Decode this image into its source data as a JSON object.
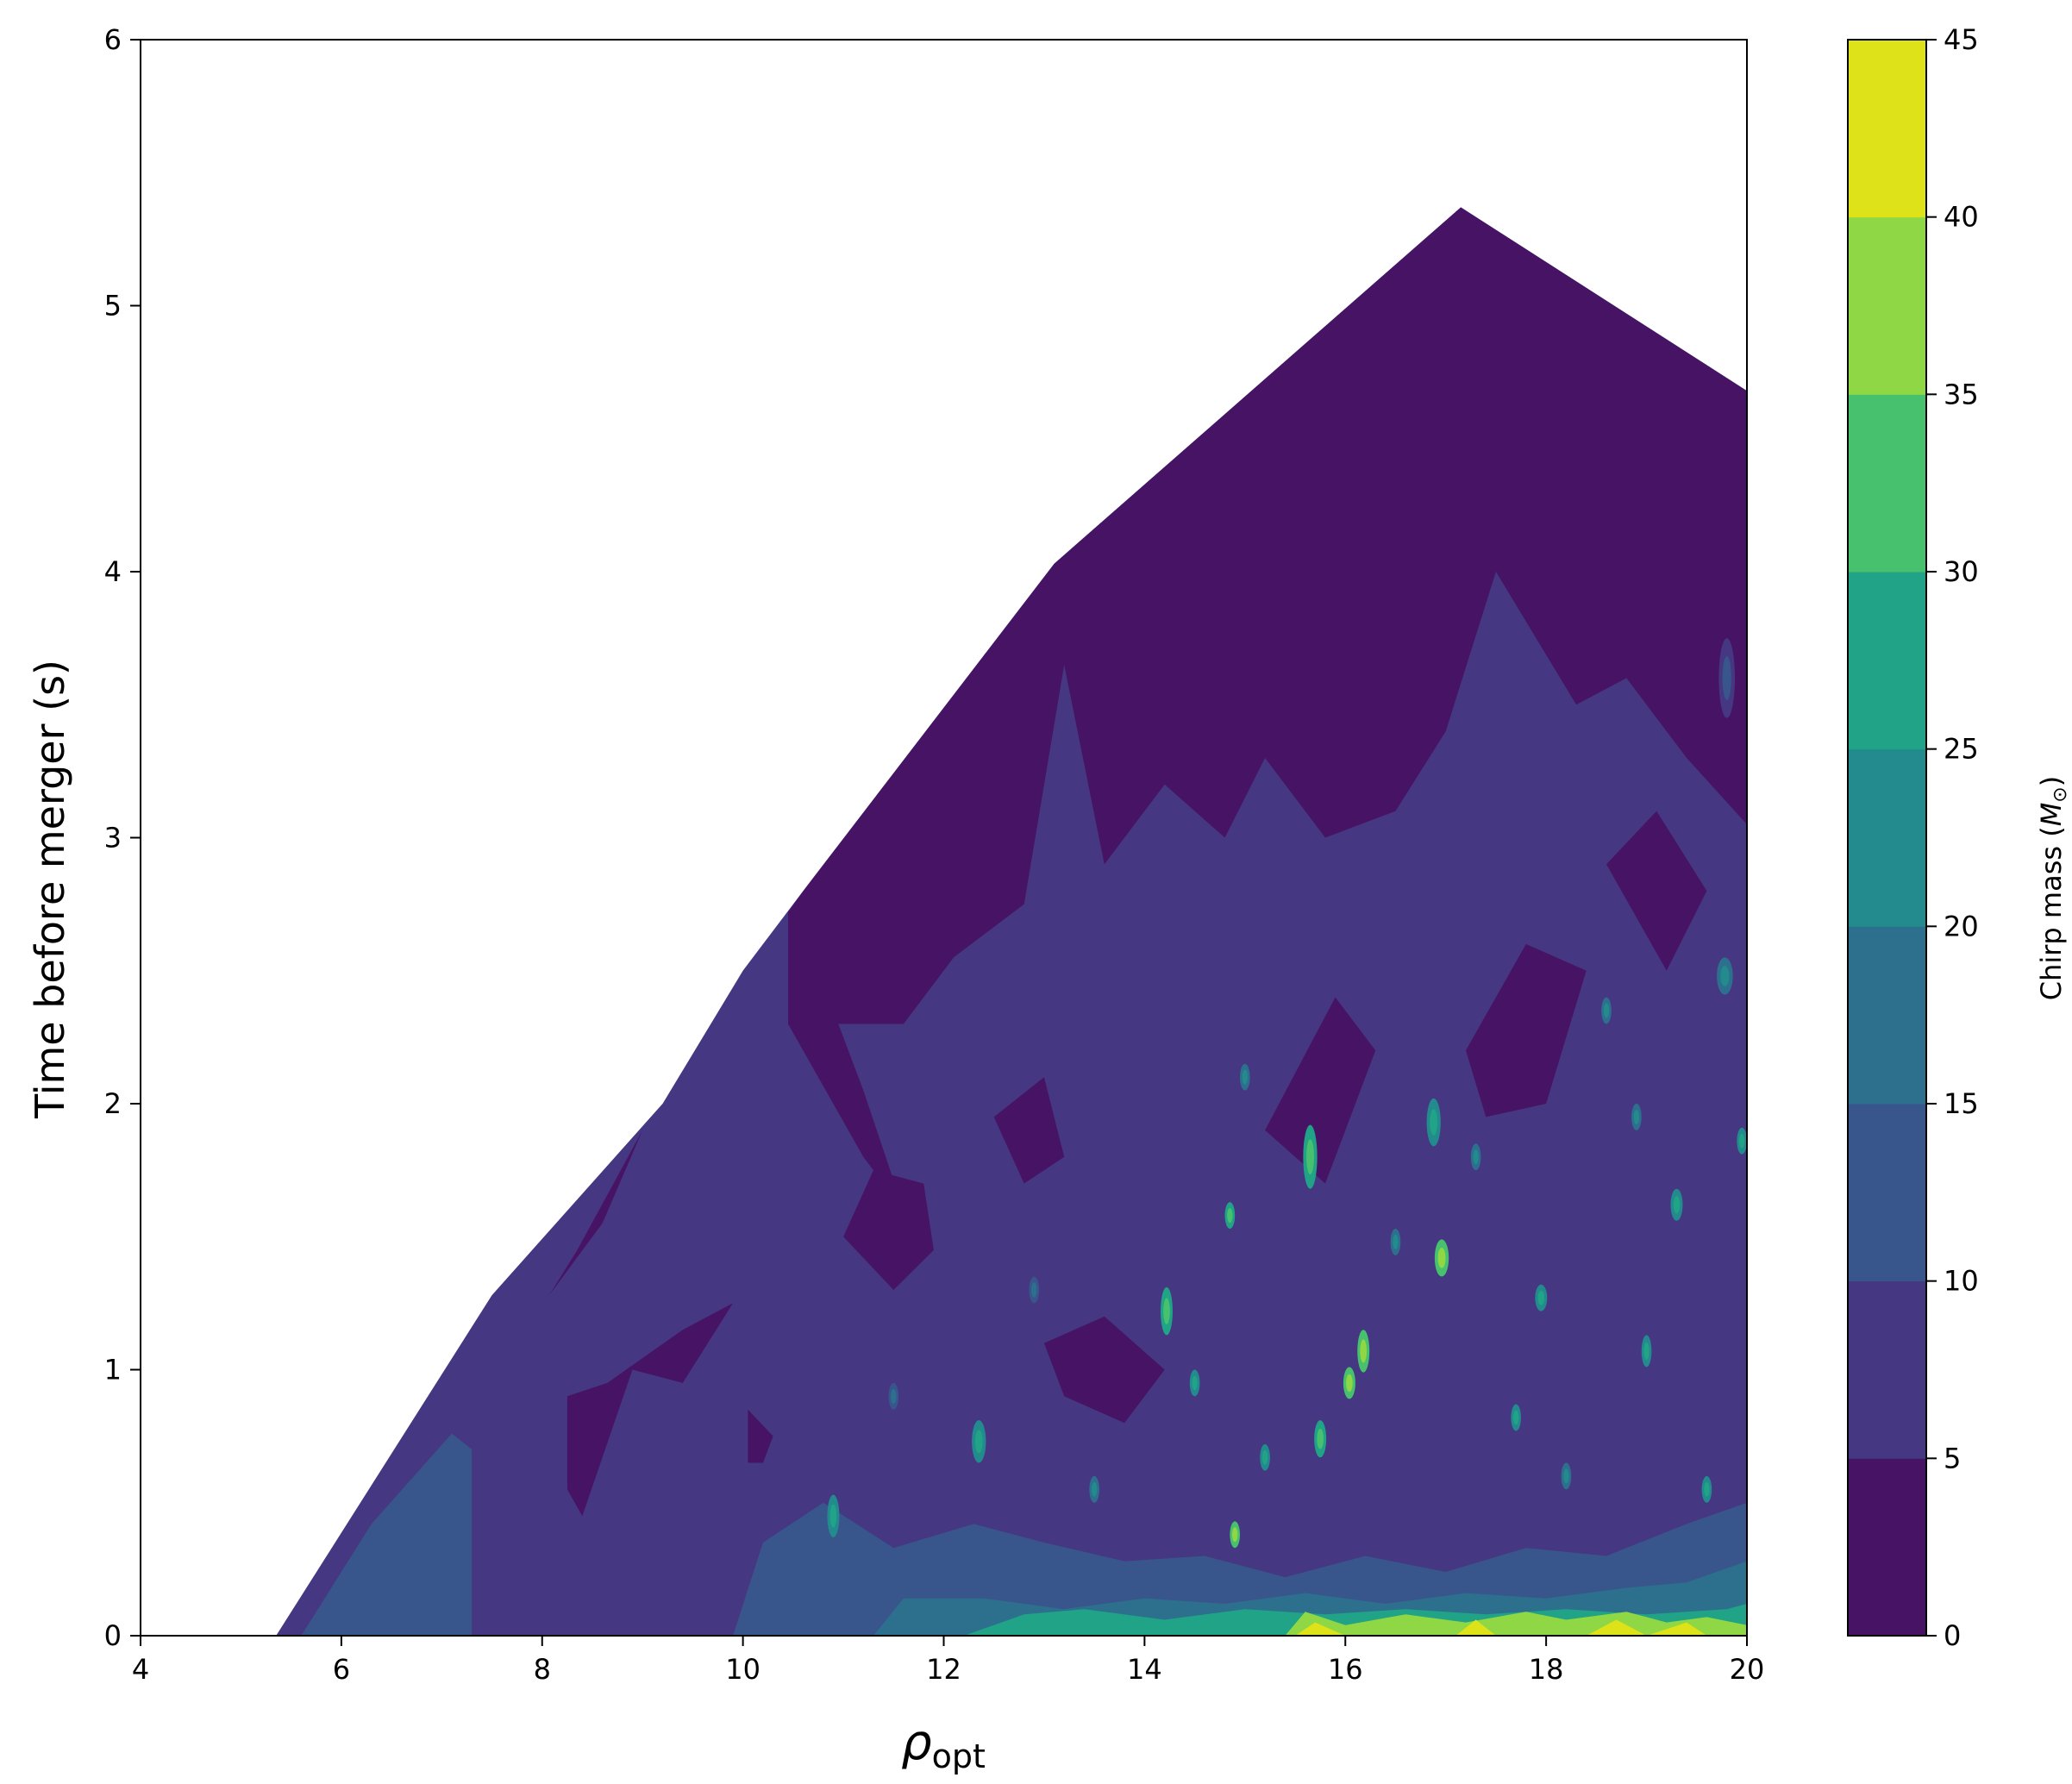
{
  "chart_data": {
    "type": "heatmap",
    "subtype": "filled-contour",
    "title": "",
    "xlabel": "ρ",
    "xlabel_subscript": "opt",
    "ylabel": "Time before merger (s)",
    "xlim": [
      4,
      20
    ],
    "ylim": [
      0,
      6
    ],
    "x_ticks": [
      4,
      6,
      8,
      10,
      12,
      14,
      16,
      18,
      20
    ],
    "y_ticks": [
      0,
      1,
      2,
      3,
      4,
      5,
      6
    ],
    "colorbar": {
      "label": "Chirp mass (",
      "label_math": "M",
      "label_sub": "⊙",
      "label_end": ")",
      "levels": [
        0,
        5,
        10,
        15,
        20,
        25,
        30,
        35,
        40,
        45
      ],
      "colors": [
        "#471365",
        "#453781",
        "#39568c",
        "#2d708e",
        "#238a8d",
        "#20a386",
        "#48c16e",
        "#8fd744",
        "#dde318"
      ]
    },
    "envelope": [
      [
        5.35,
        0
      ],
      [
        7.5,
        1.28
      ],
      [
        9.2,
        2.0
      ],
      [
        10.0,
        2.5
      ],
      [
        10.6,
        2.8
      ],
      [
        13.1,
        4.03
      ],
      [
        17.15,
        5.37
      ],
      [
        20.0,
        4.68
      ],
      [
        20.0,
        0
      ]
    ],
    "regions": [
      {
        "level": 0,
        "polygon": [
          [
            10.45,
            2.72
          ],
          [
            10.6,
            2.8
          ],
          [
            13.1,
            4.03
          ],
          [
            17.15,
            5.37
          ],
          [
            20.0,
            4.68
          ],
          [
            20.0,
            3.05
          ],
          [
            19.4,
            3.3
          ],
          [
            18.8,
            3.6
          ],
          [
            18.3,
            3.5
          ],
          [
            17.5,
            4.0
          ],
          [
            17.0,
            3.4
          ],
          [
            16.5,
            3.1
          ],
          [
            15.8,
            3.0
          ],
          [
            15.2,
            3.3
          ],
          [
            14.8,
            3.0
          ],
          [
            14.2,
            3.2
          ],
          [
            13.6,
            2.9
          ],
          [
            13.2,
            3.65
          ],
          [
            12.8,
            2.75
          ],
          [
            12.1,
            2.55
          ],
          [
            11.6,
            2.3
          ],
          [
            10.45,
            2.3
          ]
        ]
      },
      {
        "level": 0,
        "polygon": [
          [
            10.45,
            2.3
          ],
          [
            11.2,
            1.8
          ],
          [
            11.6,
            1.6
          ],
          [
            11.2,
            2.05
          ],
          [
            10.9,
            2.35
          ]
        ]
      },
      {
        "level": 0,
        "polygon": [
          [
            8.25,
            0.9
          ],
          [
            8.65,
            0.95
          ],
          [
            9.4,
            1.15
          ],
          [
            9.9,
            1.25
          ],
          [
            9.4,
            0.95
          ],
          [
            8.9,
            1.0
          ],
          [
            8.4,
            0.45
          ],
          [
            8.25,
            0.55
          ]
        ]
      },
      {
        "level": 0,
        "polygon": [
          [
            8.07,
            1.28
          ],
          [
            8.35,
            1.45
          ],
          [
            9.0,
            1.9
          ],
          [
            8.6,
            1.55
          ]
        ]
      },
      {
        "level": 0,
        "polygon": [
          [
            13.0,
            1.1
          ],
          [
            13.6,
            1.2
          ],
          [
            14.2,
            1.0
          ],
          [
            13.8,
            0.8
          ],
          [
            13.2,
            0.9
          ]
        ]
      },
      {
        "level": 0,
        "polygon": [
          [
            10.05,
            0.85
          ],
          [
            10.3,
            0.75
          ],
          [
            10.2,
            0.65
          ],
          [
            10.05,
            0.65
          ]
        ]
      },
      {
        "level": 0,
        "polygon": [
          [
            11.0,
            1.5
          ],
          [
            11.5,
            1.3
          ],
          [
            11.9,
            1.45
          ],
          [
            11.8,
            1.7
          ],
          [
            11.3,
            1.75
          ]
        ]
      },
      {
        "level": 0,
        "polygon": [
          [
            15.2,
            1.9
          ],
          [
            15.9,
            2.4
          ],
          [
            16.3,
            2.2
          ],
          [
            15.8,
            1.7
          ]
        ]
      },
      {
        "level": 0,
        "polygon": [
          [
            17.2,
            2.2
          ],
          [
            17.8,
            2.6
          ],
          [
            18.4,
            2.5
          ],
          [
            18.0,
            2.0
          ],
          [
            17.4,
            1.95
          ]
        ]
      },
      {
        "level": 0,
        "polygon": [
          [
            18.6,
            2.9
          ],
          [
            19.1,
            3.1
          ],
          [
            19.6,
            2.8
          ],
          [
            19.2,
            2.5
          ]
        ]
      },
      {
        "level": 0,
        "polygon": [
          [
            12.5,
            1.95
          ],
          [
            13.0,
            2.1
          ],
          [
            13.2,
            1.8
          ],
          [
            12.8,
            1.7
          ]
        ]
      },
      {
        "level": 2,
        "polygon": [
          [
            5.6,
            0
          ],
          [
            6.3,
            0.42
          ],
          [
            7.1,
            0.76
          ],
          [
            7.3,
            0.7
          ],
          [
            7.3,
            0
          ]
        ]
      },
      {
        "level": 2,
        "polygon": [
          [
            9.9,
            0
          ],
          [
            10.2,
            0.35
          ],
          [
            10.8,
            0.5
          ],
          [
            11.5,
            0.33
          ],
          [
            12.3,
            0.42
          ],
          [
            13.0,
            0.35
          ],
          [
            13.8,
            0.28
          ],
          [
            14.6,
            0.3
          ],
          [
            15.4,
            0.22
          ],
          [
            16.2,
            0.3
          ],
          [
            17.0,
            0.24
          ],
          [
            17.8,
            0.33
          ],
          [
            18.6,
            0.3
          ],
          [
            19.4,
            0.42
          ],
          [
            20.0,
            0.5
          ],
          [
            20.0,
            0
          ]
        ]
      },
      {
        "level": 3,
        "polygon": [
          [
            11.3,
            0
          ],
          [
            11.6,
            0.14
          ],
          [
            12.4,
            0.14
          ],
          [
            13.2,
            0.1
          ],
          [
            14.0,
            0.14
          ],
          [
            14.8,
            0.12
          ],
          [
            15.6,
            0.16
          ],
          [
            16.4,
            0.12
          ],
          [
            17.2,
            0.16
          ],
          [
            18.0,
            0.14
          ],
          [
            18.8,
            0.18
          ],
          [
            19.4,
            0.2
          ],
          [
            20.0,
            0.28
          ],
          [
            20.0,
            0
          ]
        ]
      },
      {
        "level": 5,
        "polygon": [
          [
            12.2,
            0
          ],
          [
            12.8,
            0.08
          ],
          [
            13.4,
            0.1
          ],
          [
            14.2,
            0.06
          ],
          [
            15.0,
            0.1
          ],
          [
            15.8,
            0.08
          ],
          [
            16.6,
            0.1
          ],
          [
            17.4,
            0.08
          ],
          [
            18.2,
            0.1
          ],
          [
            19.0,
            0.08
          ],
          [
            19.8,
            0.1
          ],
          [
            20.0,
            0.12
          ],
          [
            20.0,
            0
          ]
        ]
      },
      {
        "level": 7,
        "polygon": [
          [
            15.4,
            0
          ],
          [
            15.6,
            0.09
          ],
          [
            16.0,
            0.04
          ],
          [
            16.6,
            0.08
          ],
          [
            17.2,
            0.05
          ],
          [
            17.8,
            0.09
          ],
          [
            18.2,
            0.06
          ],
          [
            18.8,
            0.09
          ],
          [
            19.2,
            0.05
          ],
          [
            19.6,
            0.07
          ],
          [
            20.0,
            0.04
          ],
          [
            20.0,
            0
          ]
        ]
      },
      {
        "level": 8,
        "polygon": [
          [
            15.5,
            0
          ],
          [
            15.7,
            0.05
          ],
          [
            16.0,
            0
          ],
          [
            17.1,
            0
          ],
          [
            17.3,
            0.06
          ],
          [
            17.5,
            0
          ],
          [
            18.4,
            0
          ],
          [
            18.7,
            0.06
          ],
          [
            19.0,
            0
          ],
          [
            19.4,
            0.05
          ],
          [
            19.6,
            0
          ]
        ]
      }
    ],
    "blobs": [
      {
        "x": 16.88,
        "y": 1.93,
        "rx": 0.07,
        "ry": 0.09,
        "level": 5
      },
      {
        "x": 15.65,
        "y": 1.8,
        "rx": 0.07,
        "ry": 0.12,
        "level": 6
      },
      {
        "x": 16.96,
        "y": 1.42,
        "rx": 0.07,
        "ry": 0.07,
        "level": 7
      },
      {
        "x": 14.22,
        "y": 1.22,
        "rx": 0.06,
        "ry": 0.09,
        "level": 6
      },
      {
        "x": 16.18,
        "y": 1.07,
        "rx": 0.06,
        "ry": 0.08,
        "level": 7
      },
      {
        "x": 16.04,
        "y": 0.95,
        "rx": 0.06,
        "ry": 0.06,
        "level": 7
      },
      {
        "x": 15.75,
        "y": 0.74,
        "rx": 0.06,
        "ry": 0.07,
        "level": 6
      },
      {
        "x": 17.95,
        "y": 1.27,
        "rx": 0.06,
        "ry": 0.05,
        "level": 5
      },
      {
        "x": 19.0,
        "y": 1.07,
        "rx": 0.05,
        "ry": 0.06,
        "level": 5
      },
      {
        "x": 19.3,
        "y": 1.62,
        "rx": 0.06,
        "ry": 0.06,
        "level": 5
      },
      {
        "x": 19.78,
        "y": 2.48,
        "rx": 0.08,
        "ry": 0.07,
        "level": 4
      },
      {
        "x": 19.95,
        "y": 1.86,
        "rx": 0.05,
        "ry": 0.05,
        "level": 5
      },
      {
        "x": 12.35,
        "y": 0.73,
        "rx": 0.07,
        "ry": 0.08,
        "level": 5
      },
      {
        "x": 10.9,
        "y": 0.45,
        "rx": 0.06,
        "ry": 0.08,
        "level": 5
      },
      {
        "x": 14.9,
        "y": 0.38,
        "rx": 0.05,
        "ry": 0.05,
        "level": 7
      },
      {
        "x": 15.2,
        "y": 0.67,
        "rx": 0.05,
        "ry": 0.05,
        "level": 5
      },
      {
        "x": 14.85,
        "y": 1.58,
        "rx": 0.05,
        "ry": 0.05,
        "level": 6
      },
      {
        "x": 18.6,
        "y": 2.35,
        "rx": 0.05,
        "ry": 0.05,
        "level": 4
      },
      {
        "x": 17.7,
        "y": 0.82,
        "rx": 0.05,
        "ry": 0.05,
        "level": 5
      },
      {
        "x": 16.5,
        "y": 1.48,
        "rx": 0.05,
        "ry": 0.05,
        "level": 4
      },
      {
        "x": 18.2,
        "y": 0.6,
        "rx": 0.05,
        "ry": 0.05,
        "level": 4
      },
      {
        "x": 13.5,
        "y": 0.55,
        "rx": 0.05,
        "ry": 0.05,
        "level": 4
      },
      {
        "x": 14.5,
        "y": 0.95,
        "rx": 0.05,
        "ry": 0.05,
        "level": 5
      },
      {
        "x": 19.6,
        "y": 0.55,
        "rx": 0.05,
        "ry": 0.05,
        "level": 5
      },
      {
        "x": 19.8,
        "y": 3.6,
        "rx": 0.08,
        "ry": 0.15,
        "level": 2
      },
      {
        "x": 15.0,
        "y": 2.1,
        "rx": 0.05,
        "ry": 0.05,
        "level": 4
      },
      {
        "x": 17.3,
        "y": 1.8,
        "rx": 0.05,
        "ry": 0.05,
        "level": 4
      },
      {
        "x": 11.5,
        "y": 0.9,
        "rx": 0.05,
        "ry": 0.05,
        "level": 3
      },
      {
        "x": 12.9,
        "y": 1.3,
        "rx": 0.05,
        "ry": 0.05,
        "level": 3
      },
      {
        "x": 18.9,
        "y": 1.95,
        "rx": 0.05,
        "ry": 0.05,
        "level": 4
      }
    ]
  }
}
